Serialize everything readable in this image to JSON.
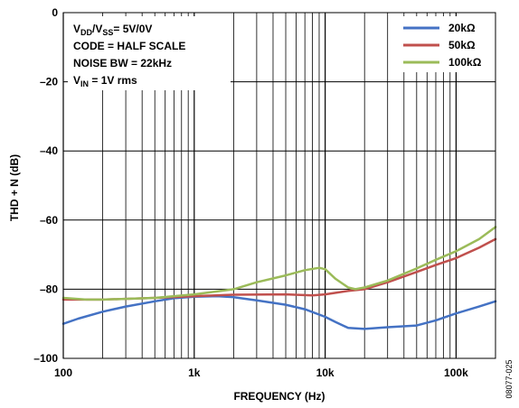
{
  "chart_data": {
    "type": "line",
    "xlabel": "FREQUENCY (Hz)",
    "ylabel": "THD + N (dB)",
    "x_scale": "log",
    "xlim": [
      100,
      200000
    ],
    "ylim": [
      -100,
      0
    ],
    "x_ticks": [
      {
        "value": 100,
        "label": "100"
      },
      {
        "value": 1000,
        "label": "1k"
      },
      {
        "value": 10000,
        "label": "10k"
      },
      {
        "value": 100000,
        "label": "100k"
      }
    ],
    "y_ticks": [
      {
        "value": 0,
        "label": "0"
      },
      {
        "value": -20,
        "label": "–20"
      },
      {
        "value": -40,
        "label": "–40"
      },
      {
        "value": -60,
        "label": "–60"
      },
      {
        "value": -80,
        "label": "–80"
      },
      {
        "value": -100,
        "label": "–100"
      }
    ],
    "grid": true,
    "legend_position": "top-right",
    "conditions": [
      {
        "parts": [
          {
            "t": "V"
          },
          {
            "t": "DD",
            "sub": true
          },
          {
            "t": "/V"
          },
          {
            "t": "SS",
            "sub": true
          },
          {
            "t": "= 5V/0V"
          }
        ]
      },
      {
        "parts": [
          {
            "t": "CODE = HALF SCALE"
          }
        ]
      },
      {
        "parts": [
          {
            "t": "NOISE BW = 22kHz"
          }
        ]
      },
      {
        "parts": [
          {
            "t": "V"
          },
          {
            "t": "IN",
            "sub": true
          },
          {
            "t": " = 1V rms"
          }
        ]
      }
    ],
    "series": [
      {
        "name": "20kΩ",
        "color": "#4472c4",
        "points": [
          [
            100,
            -90
          ],
          [
            130,
            -88.5
          ],
          [
            200,
            -86.5
          ],
          [
            300,
            -85
          ],
          [
            500,
            -83.5
          ],
          [
            700,
            -82.6
          ],
          [
            1000,
            -82.2
          ],
          [
            1500,
            -82
          ],
          [
            2000,
            -82.3
          ],
          [
            3000,
            -83.2
          ],
          [
            5000,
            -84.5
          ],
          [
            7000,
            -85.8
          ],
          [
            10000,
            -88
          ],
          [
            12000,
            -89.5
          ],
          [
            15000,
            -91.2
          ],
          [
            20000,
            -91.5
          ],
          [
            30000,
            -91
          ],
          [
            50000,
            -90.5
          ],
          [
            70000,
            -89
          ],
          [
            100000,
            -87
          ],
          [
            150000,
            -85
          ],
          [
            200000,
            -83.5
          ]
        ]
      },
      {
        "name": "50kΩ",
        "color": "#c0504d",
        "points": [
          [
            100,
            -83
          ],
          [
            200,
            -83
          ],
          [
            500,
            -82.5
          ],
          [
            1000,
            -82
          ],
          [
            2000,
            -81.6
          ],
          [
            5000,
            -81.5
          ],
          [
            8000,
            -81.8
          ],
          [
            10000,
            -81.5
          ],
          [
            15000,
            -80.5
          ],
          [
            20000,
            -80
          ],
          [
            30000,
            -78
          ],
          [
            50000,
            -75
          ],
          [
            70000,
            -73
          ],
          [
            100000,
            -71
          ],
          [
            150000,
            -68
          ],
          [
            200000,
            -65.5
          ]
        ]
      },
      {
        "name": "100kΩ",
        "color": "#9bbb59",
        "points": [
          [
            100,
            -82.5
          ],
          [
            150,
            -83
          ],
          [
            200,
            -83
          ],
          [
            500,
            -82.5
          ],
          [
            1000,
            -81.5
          ],
          [
            2000,
            -80
          ],
          [
            3000,
            -78
          ],
          [
            5000,
            -76
          ],
          [
            7000,
            -74.5
          ],
          [
            9000,
            -73.8
          ],
          [
            10000,
            -74.2
          ],
          [
            12000,
            -77
          ],
          [
            15000,
            -79.5
          ],
          [
            17000,
            -80
          ],
          [
            20000,
            -79.5
          ],
          [
            30000,
            -77.5
          ],
          [
            50000,
            -74
          ],
          [
            70000,
            -71.5
          ],
          [
            100000,
            -69
          ],
          [
            150000,
            -65.5
          ],
          [
            200000,
            -62
          ]
        ]
      }
    ]
  },
  "figure_id": "08077-025"
}
